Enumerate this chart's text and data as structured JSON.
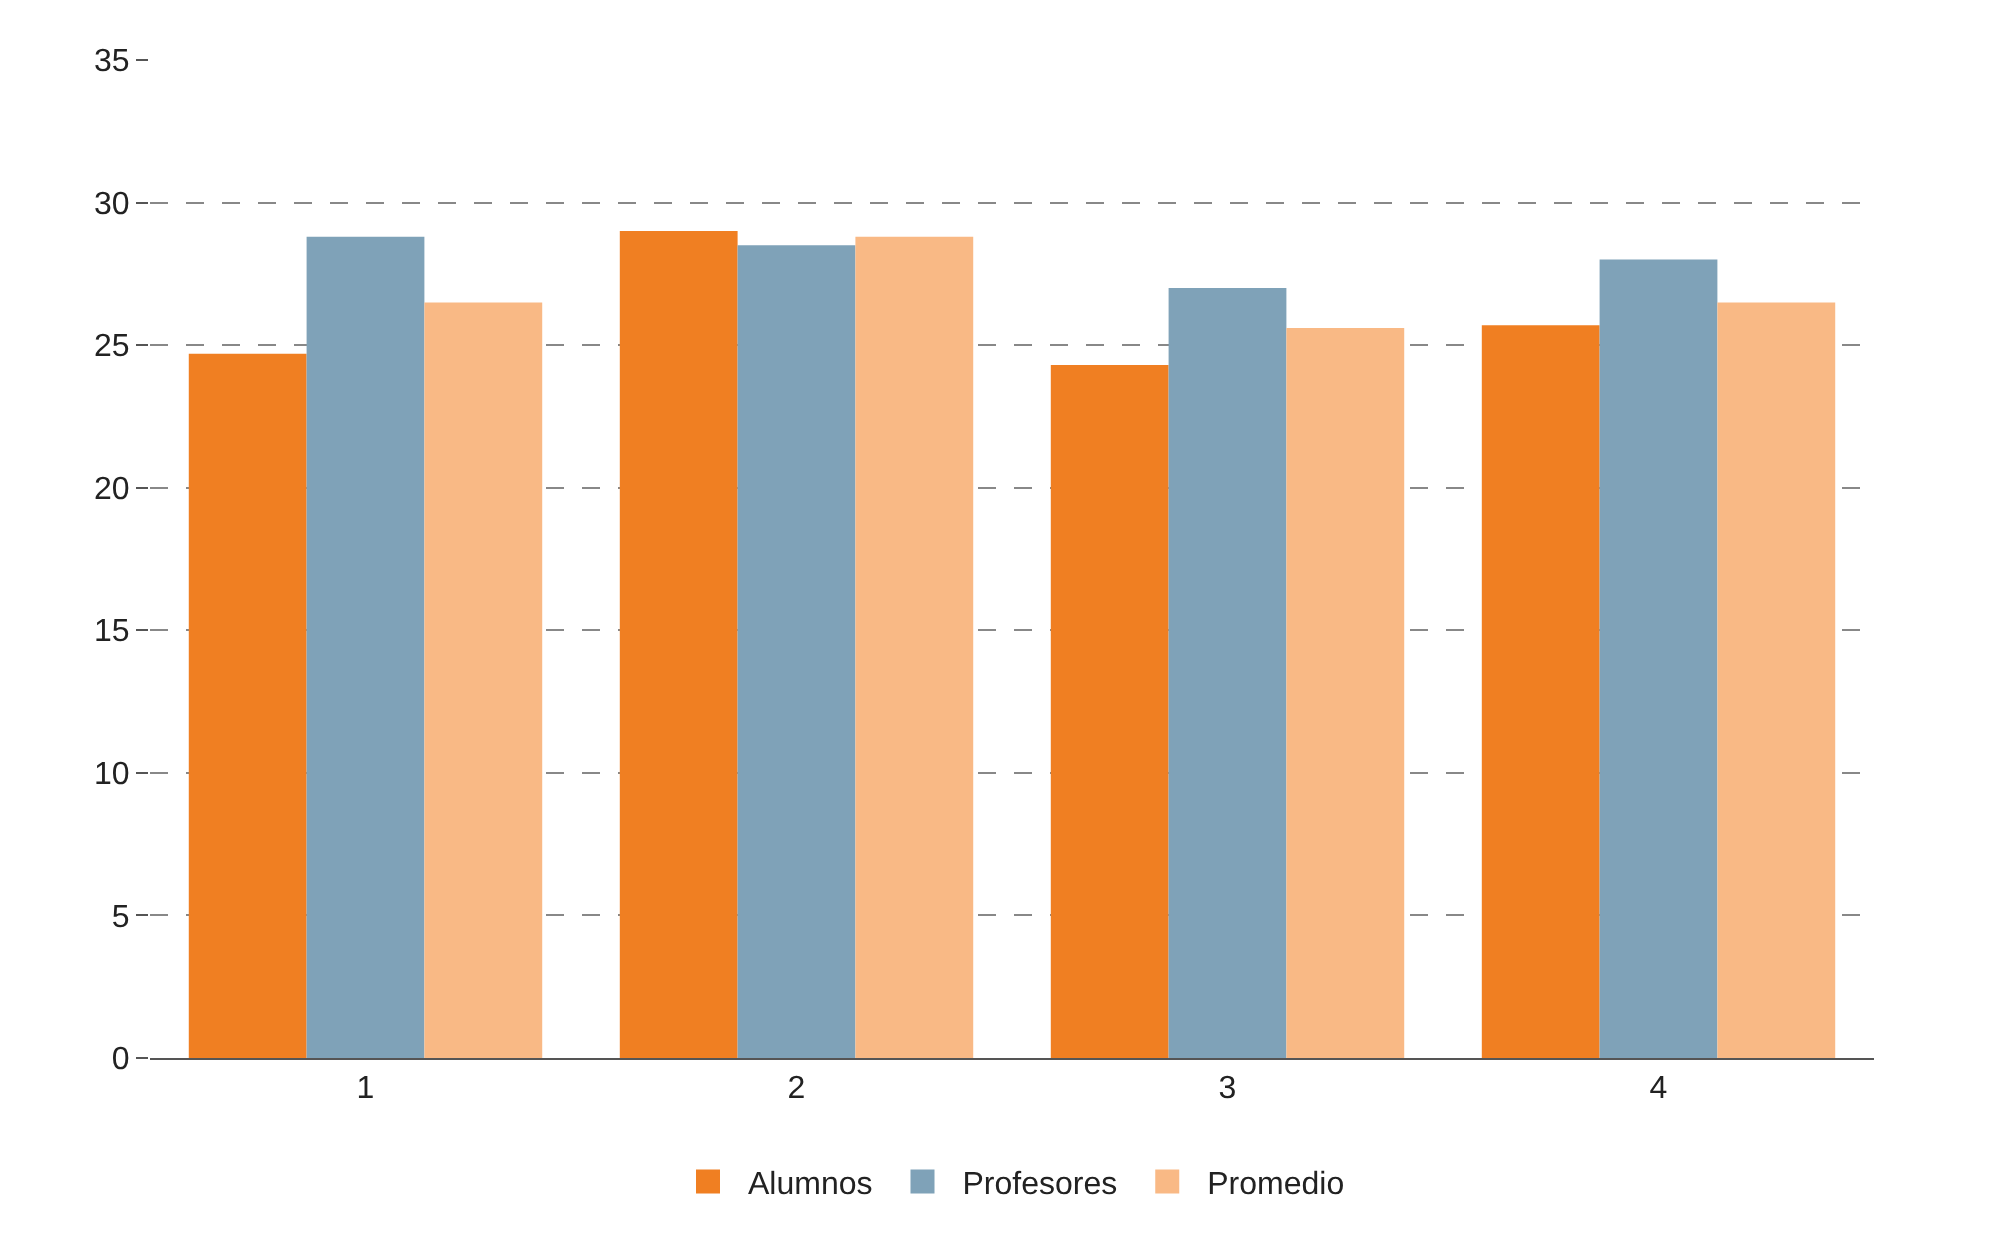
{
  "chart_data": {
    "type": "bar",
    "categories": [
      "1",
      "2",
      "3",
      "4"
    ],
    "series": [
      {
        "name": "Alumnos",
        "color": "#f07f22",
        "values": [
          24.7,
          29.0,
          24.3,
          25.7
        ]
      },
      {
        "name": "Profesores",
        "color": "#7fa2b8",
        "values": [
          28.8,
          28.5,
          27.0,
          28.0
        ]
      },
      {
        "name": "Promedio",
        "color": "#f9b985",
        "values": [
          26.5,
          28.8,
          25.6,
          26.5
        ]
      }
    ],
    "ylim": [
      0,
      35
    ],
    "yticks": [
      0,
      5,
      10,
      15,
      20,
      25,
      30,
      35
    ],
    "grid": "y",
    "legend": "bottom"
  }
}
